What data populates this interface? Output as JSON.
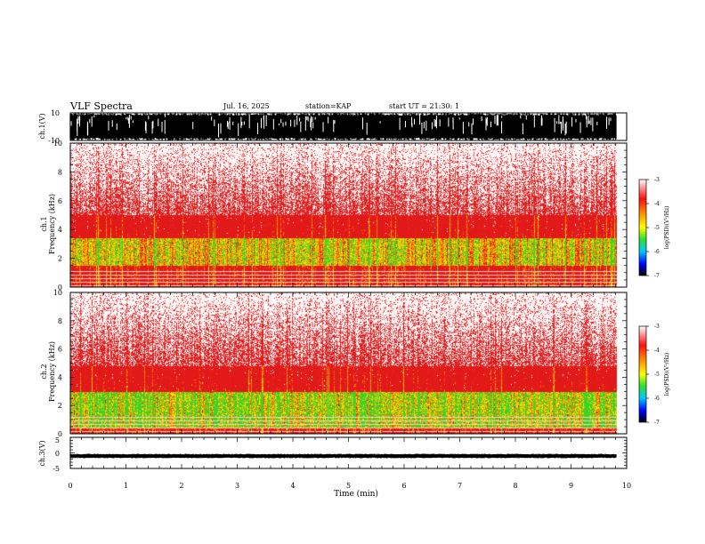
{
  "header": {
    "title": "VLF Spectra",
    "date": "Jul. 16, 2025",
    "station": "station=KAP",
    "start": "start UT =  21:30: 1"
  },
  "colors": {
    "bg": "#ffffff",
    "ink": "#000000",
    "spectrum_red": "#e52020",
    "spectrum_orange": "#ff8a00",
    "spectrum_yellow": "#f0e000",
    "spectrum_green": "#30d020"
  },
  "chart_data": [
    {
      "type": "line",
      "name": "ch1-waveform",
      "ylabel": "ch.1(V)",
      "ylim": [
        -10,
        10
      ],
      "yticks": [
        "10",
        "-10"
      ],
      "x_unit": "min",
      "xlim": [
        0,
        10
      ],
      "description_values": "saturated broadband waveform spanning about -10 to +10 V over 0–9.8 min"
    },
    {
      "type": "heatmap",
      "name": "ch1-spectrogram",
      "ylabel": "Frequency (kHz)",
      "channel_label": "ch.1",
      "ylim": [
        0,
        10
      ],
      "yticks": [
        "0",
        "2",
        "4",
        "6",
        "8",
        "10"
      ],
      "xlim": [
        0,
        10
      ],
      "data_end_min": 9.82,
      "intense_band_khz": [
        1.5,
        3.4
      ],
      "red_band_khz": [
        0,
        5.0
      ],
      "colorbar": {
        "label": "log(PSD)(V²/Hz)",
        "range": [
          -7,
          -3
        ],
        "ticks": [
          "-3",
          "-4",
          "-5",
          "-6",
          "-7"
        ]
      }
    },
    {
      "type": "heatmap",
      "name": "ch2-spectrogram",
      "ylabel": "Frequency (kHz)",
      "channel_label": "ch.2",
      "ylim": [
        0,
        10
      ],
      "yticks": [
        "0",
        "2",
        "4",
        "6",
        "8",
        "10"
      ],
      "xlim": [
        0,
        10
      ],
      "data_end_min": 9.82,
      "intense_band_khz": [
        0.5,
        3.0
      ],
      "red_band_khz": [
        0,
        4.8
      ],
      "colorbar": {
        "label": "log(PSD)(V²/Hz)",
        "range": [
          -7,
          -3
        ],
        "ticks": [
          "-3",
          "-4",
          "-5",
          "-6",
          "-7"
        ]
      }
    },
    {
      "type": "line",
      "name": "ch3-waveform",
      "ylabel": "ch.3(V)",
      "ylim": [
        -5,
        5
      ],
      "yticks": [
        "5",
        "0",
        "-5"
      ],
      "xlim": [
        0,
        10
      ],
      "center_value": -1,
      "amplitude": 0.6
    }
  ],
  "xaxis": {
    "label": "Time (min)",
    "ticks": [
      "0",
      "1",
      "2",
      "3",
      "4",
      "5",
      "6",
      "7",
      "8",
      "9",
      "10"
    ]
  }
}
